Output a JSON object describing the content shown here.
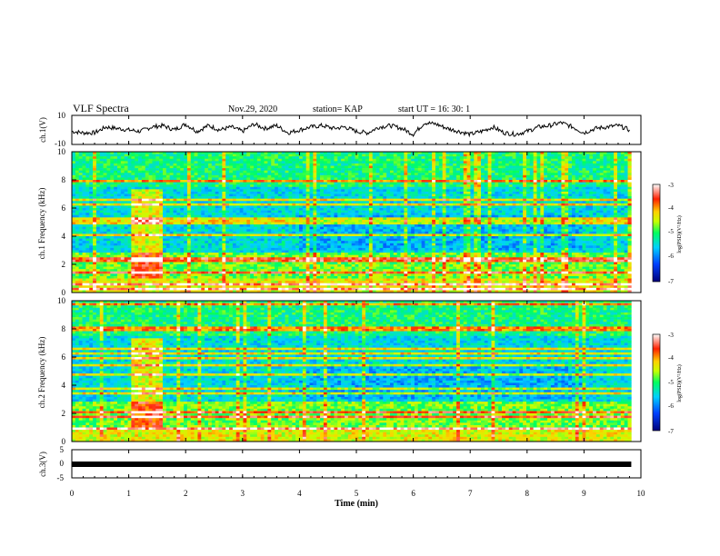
{
  "header": {
    "title": "VLF Spectra",
    "date": "Nov.29, 2020",
    "station": "station= KAP",
    "start": "start  UT =   16: 30: 1"
  },
  "chart_data": [
    {
      "type": "line",
      "ylabel": "ch.1(V)",
      "ylim": [
        -10,
        10
      ],
      "yticks": [
        "10",
        "-10"
      ],
      "xlim": [
        0,
        10
      ],
      "series": [
        {
          "x": [
            0,
            0.2,
            0.4,
            0.6,
            0.8,
            1.0,
            1.2,
            1.4,
            1.6,
            1.8,
            2.0,
            2.2,
            2.4,
            2.6,
            2.8,
            3.0,
            3.2,
            3.4,
            3.6,
            3.8,
            4.0,
            4.2,
            4.4,
            4.6,
            4.8,
            5.0,
            5.2,
            5.4,
            5.6,
            5.8,
            6.0,
            6.2,
            6.4,
            6.6,
            6.8,
            7.0,
            7.2,
            7.4,
            7.6,
            7.8,
            8.0,
            8.2,
            8.4,
            8.6,
            8.8,
            9.0,
            9.2,
            9.4,
            9.6,
            9.8
          ],
          "y": [
            -1,
            -2,
            -2,
            2,
            1,
            0,
            -1,
            2,
            3,
            0,
            4,
            -1,
            3,
            0,
            2,
            -1,
            4,
            1,
            3,
            -2,
            0,
            2,
            3,
            1,
            2,
            -1,
            -2,
            2,
            3,
            1,
            -3,
            5,
            4,
            1,
            -1,
            -3,
            -1,
            2,
            -2,
            -3,
            -1,
            2,
            3,
            5,
            2,
            -2,
            1,
            2,
            3,
            0
          ]
        }
      ]
    },
    {
      "type": "heatmap",
      "ylabel": "ch.1 Frequency (kHz)",
      "ylim": [
        0,
        10
      ],
      "yticks": [
        "10",
        "8",
        "6",
        "4",
        "2",
        "0"
      ],
      "xlim": [
        0,
        10
      ],
      "colorbar": {
        "label": "log(PSD)(V²/Hz)",
        "ticks": [
          "-3",
          "-4",
          "-5",
          "-6",
          "-7"
        ],
        "range": [
          -7,
          -3
        ]
      }
    },
    {
      "type": "heatmap",
      "ylabel": "ch.2 Frequency (kHz)",
      "ylim": [
        0,
        10
      ],
      "yticks": [
        "10",
        "8",
        "6",
        "4",
        "2",
        "0"
      ],
      "xlim": [
        0,
        10
      ],
      "colorbar": {
        "label": "log(PSD)(V²/Hz)",
        "ticks": [
          "-3",
          "-4",
          "-5",
          "-6",
          "-7"
        ],
        "range": [
          -7,
          -3
        ]
      }
    },
    {
      "type": "line",
      "ylabel": "ch.3(V)",
      "ylim": [
        -5,
        5
      ],
      "yticks": [
        "5",
        "0",
        "-5"
      ],
      "xlim": [
        0,
        10
      ],
      "series": [
        {
          "x": [
            0,
            9.83
          ],
          "y": [
            0,
            0
          ]
        }
      ]
    }
  ],
  "xaxis": {
    "label": "Time (min)",
    "ticks": [
      "0",
      "1",
      "2",
      "3",
      "4",
      "5",
      "6",
      "7",
      "8",
      "9",
      "10"
    ]
  }
}
